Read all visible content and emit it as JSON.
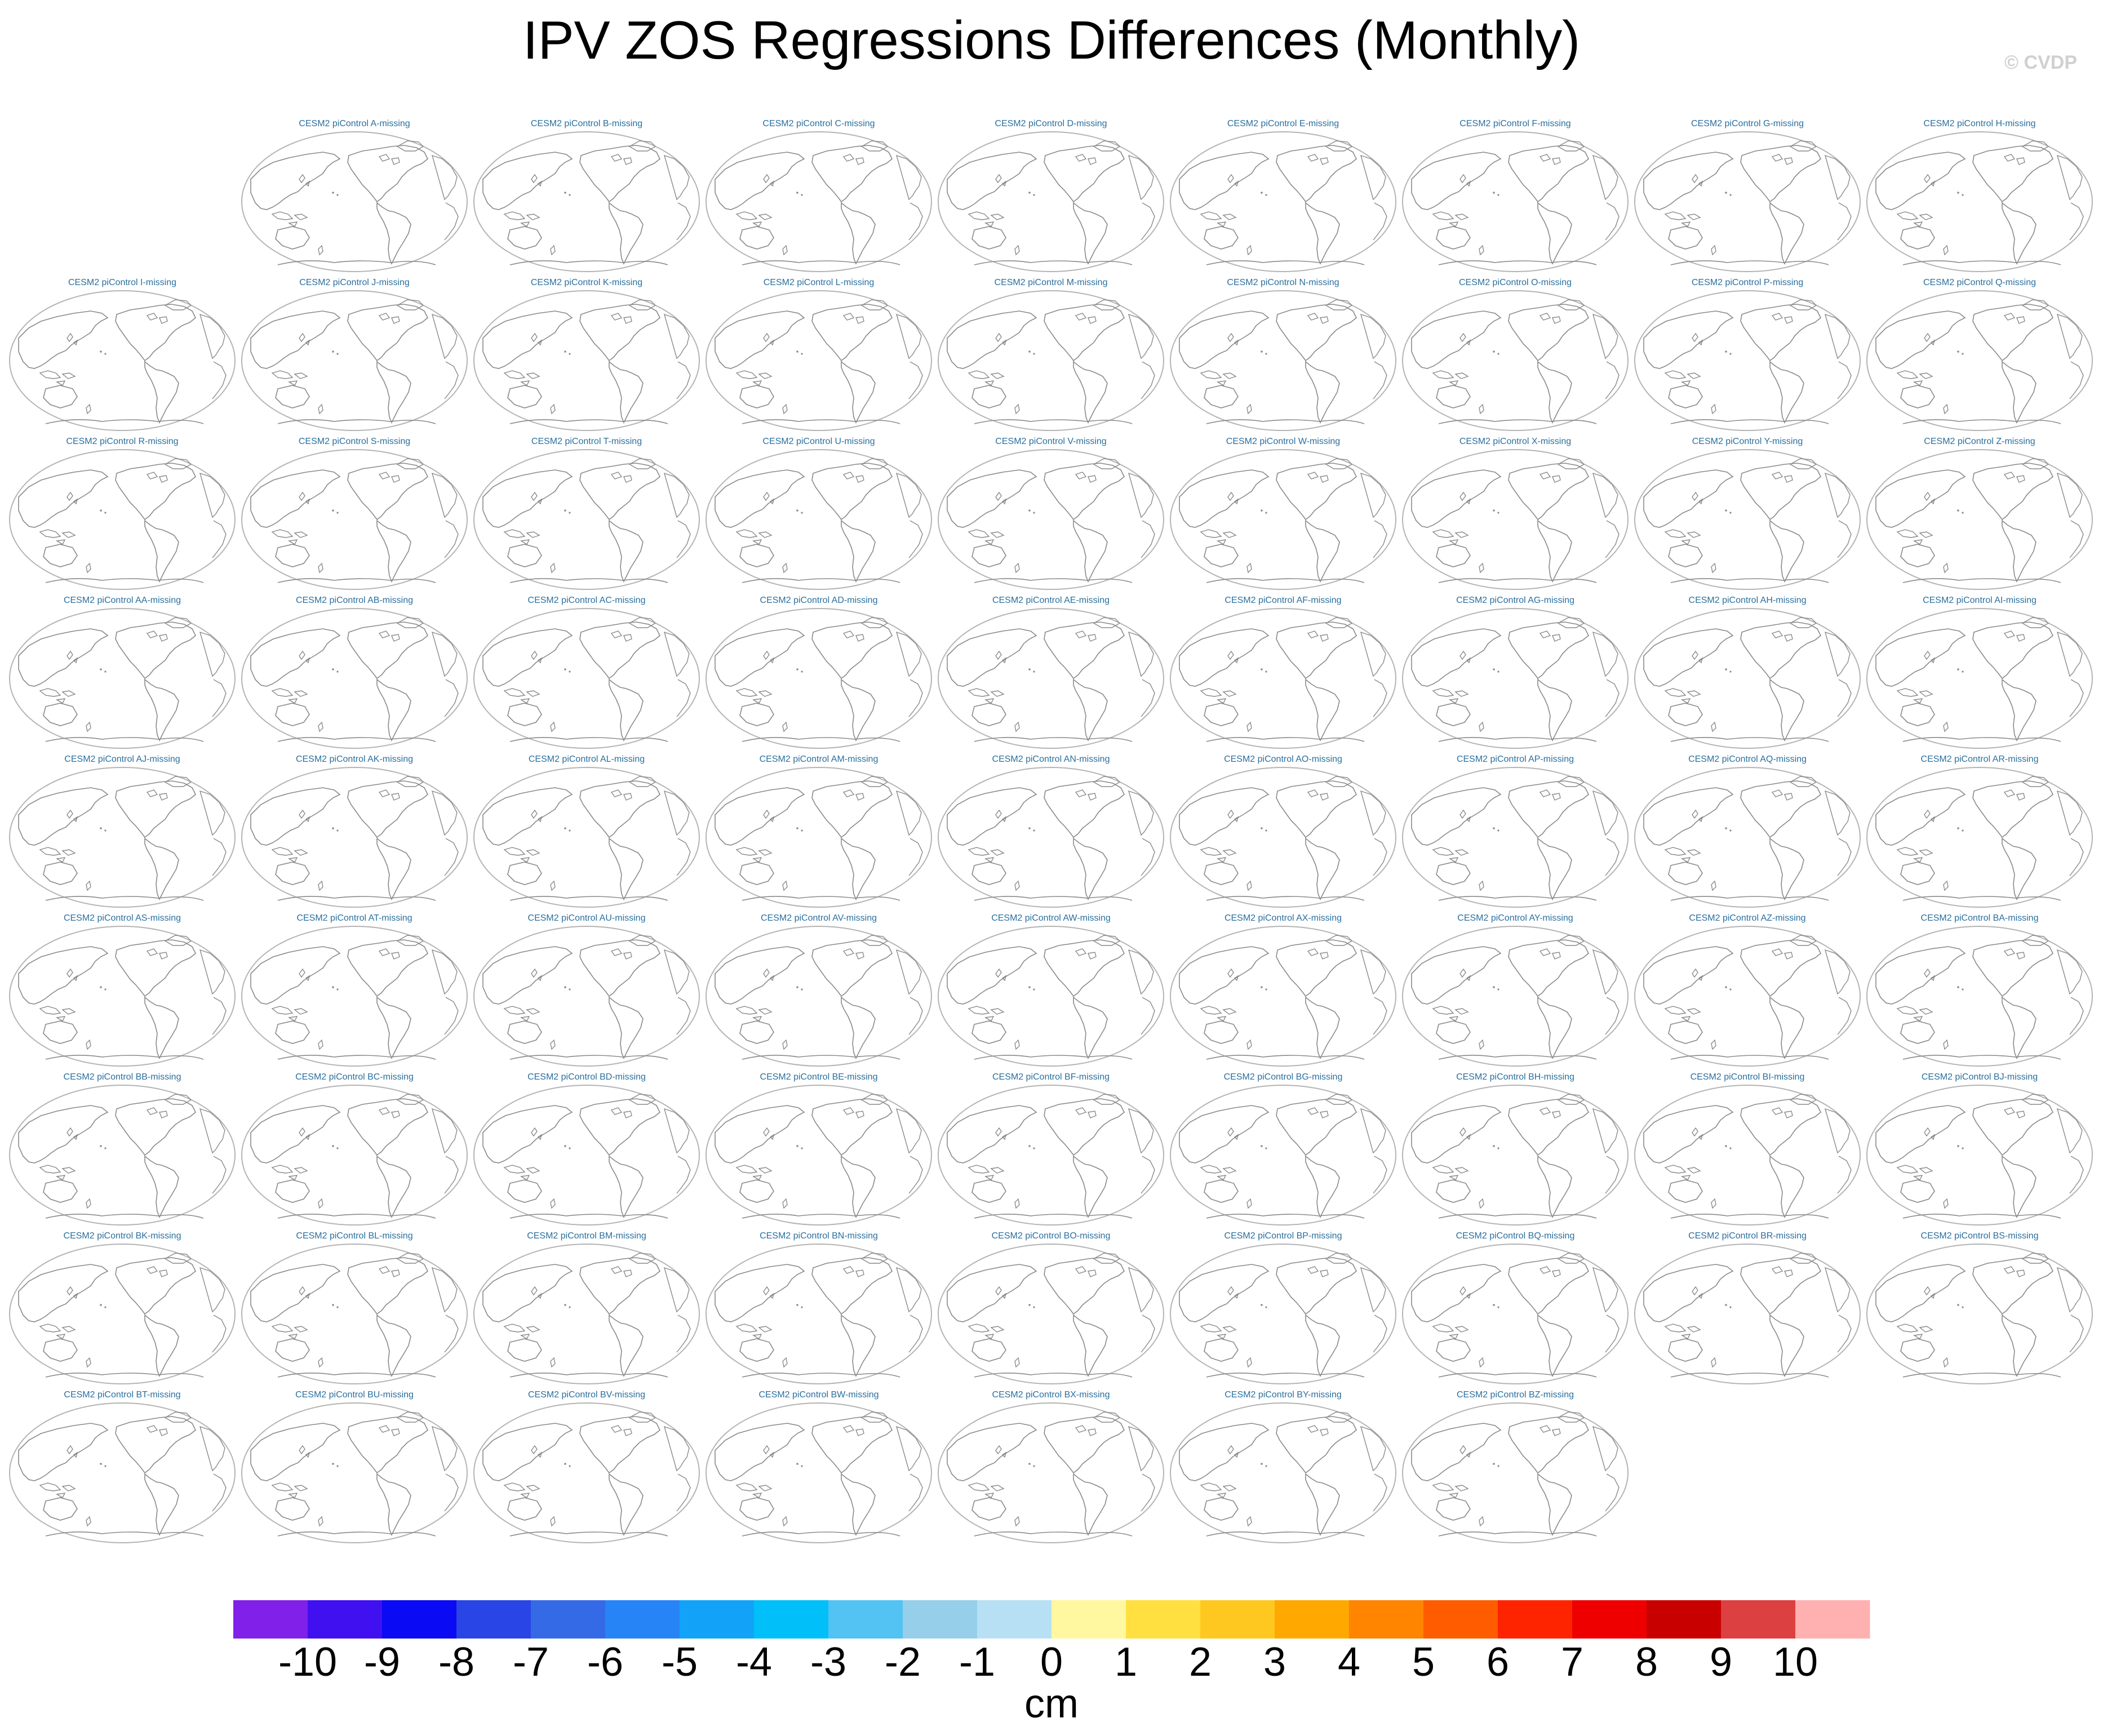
{
  "title": "IPV ZOS Regressions Differences (Monthly)",
  "watermark": "© CVDP",
  "panel_title_prefix": "CESM2 piControl ",
  "panel_title_suffix": "-missing",
  "panels": [
    {
      "id": "A",
      "row": 0,
      "col": 1
    },
    {
      "id": "B",
      "row": 0,
      "col": 2
    },
    {
      "id": "C",
      "row": 0,
      "col": 3
    },
    {
      "id": "D",
      "row": 0,
      "col": 4
    },
    {
      "id": "E",
      "row": 0,
      "col": 5
    },
    {
      "id": "F",
      "row": 0,
      "col": 6
    },
    {
      "id": "G",
      "row": 0,
      "col": 7
    },
    {
      "id": "H",
      "row": 0,
      "col": 8
    },
    {
      "id": "I",
      "row": 1,
      "col": 0
    },
    {
      "id": "J",
      "row": 1,
      "col": 1
    },
    {
      "id": "K",
      "row": 1,
      "col": 2
    },
    {
      "id": "L",
      "row": 1,
      "col": 3
    },
    {
      "id": "M",
      "row": 1,
      "col": 4
    },
    {
      "id": "N",
      "row": 1,
      "col": 5
    },
    {
      "id": "O",
      "row": 1,
      "col": 6
    },
    {
      "id": "P",
      "row": 1,
      "col": 7
    },
    {
      "id": "Q",
      "row": 1,
      "col": 8
    },
    {
      "id": "R",
      "row": 2,
      "col": 0
    },
    {
      "id": "S",
      "row": 2,
      "col": 1
    },
    {
      "id": "T",
      "row": 2,
      "col": 2
    },
    {
      "id": "U",
      "row": 2,
      "col": 3
    },
    {
      "id": "V",
      "row": 2,
      "col": 4
    },
    {
      "id": "W",
      "row": 2,
      "col": 5
    },
    {
      "id": "X",
      "row": 2,
      "col": 6
    },
    {
      "id": "Y",
      "row": 2,
      "col": 7
    },
    {
      "id": "Z",
      "row": 2,
      "col": 8
    },
    {
      "id": "AA",
      "row": 3,
      "col": 0
    },
    {
      "id": "AB",
      "row": 3,
      "col": 1
    },
    {
      "id": "AC",
      "row": 3,
      "col": 2
    },
    {
      "id": "AD",
      "row": 3,
      "col": 3
    },
    {
      "id": "AE",
      "row": 3,
      "col": 4
    },
    {
      "id": "AF",
      "row": 3,
      "col": 5
    },
    {
      "id": "AG",
      "row": 3,
      "col": 6
    },
    {
      "id": "AH",
      "row": 3,
      "col": 7
    },
    {
      "id": "AI",
      "row": 3,
      "col": 8
    },
    {
      "id": "AJ",
      "row": 4,
      "col": 0
    },
    {
      "id": "AK",
      "row": 4,
      "col": 1
    },
    {
      "id": "AL",
      "row": 4,
      "col": 2
    },
    {
      "id": "AM",
      "row": 4,
      "col": 3
    },
    {
      "id": "AN",
      "row": 4,
      "col": 4
    },
    {
      "id": "AO",
      "row": 4,
      "col": 5
    },
    {
      "id": "AP",
      "row": 4,
      "col": 6
    },
    {
      "id": "AQ",
      "row": 4,
      "col": 7
    },
    {
      "id": "AR",
      "row": 4,
      "col": 8
    },
    {
      "id": "AS",
      "row": 5,
      "col": 0
    },
    {
      "id": "AT",
      "row": 5,
      "col": 1
    },
    {
      "id": "AU",
      "row": 5,
      "col": 2
    },
    {
      "id": "AV",
      "row": 5,
      "col": 3
    },
    {
      "id": "AW",
      "row": 5,
      "col": 4
    },
    {
      "id": "AX",
      "row": 5,
      "col": 5
    },
    {
      "id": "AY",
      "row": 5,
      "col": 6
    },
    {
      "id": "AZ",
      "row": 5,
      "col": 7
    },
    {
      "id": "BA",
      "row": 5,
      "col": 8
    },
    {
      "id": "BB",
      "row": 6,
      "col": 0
    },
    {
      "id": "BC",
      "row": 6,
      "col": 1
    },
    {
      "id": "BD",
      "row": 6,
      "col": 2
    },
    {
      "id": "BE",
      "row": 6,
      "col": 3
    },
    {
      "id": "BF",
      "row": 6,
      "col": 4
    },
    {
      "id": "BG",
      "row": 6,
      "col": 5
    },
    {
      "id": "BH",
      "row": 6,
      "col": 6
    },
    {
      "id": "BI",
      "row": 6,
      "col": 7
    },
    {
      "id": "BJ",
      "row": 6,
      "col": 8
    },
    {
      "id": "BK",
      "row": 7,
      "col": 0
    },
    {
      "id": "BL",
      "row": 7,
      "col": 1
    },
    {
      "id": "BM",
      "row": 7,
      "col": 2
    },
    {
      "id": "BN",
      "row": 7,
      "col": 3
    },
    {
      "id": "BO",
      "row": 7,
      "col": 4
    },
    {
      "id": "BP",
      "row": 7,
      "col": 5
    },
    {
      "id": "BQ",
      "row": 7,
      "col": 6
    },
    {
      "id": "BR",
      "row": 7,
      "col": 7
    },
    {
      "id": "BS",
      "row": 7,
      "col": 8
    },
    {
      "id": "BT",
      "row": 8,
      "col": 0
    },
    {
      "id": "BU",
      "row": 8,
      "col": 1
    },
    {
      "id": "BV",
      "row": 8,
      "col": 2
    },
    {
      "id": "BW",
      "row": 8,
      "col": 3
    },
    {
      "id": "BX",
      "row": 8,
      "col": 4
    },
    {
      "id": "BY",
      "row": 8,
      "col": 5
    },
    {
      "id": "BZ",
      "row": 8,
      "col": 6
    }
  ],
  "colorbar": {
    "unit": "cm",
    "labels": [
      "-10",
      "-9",
      "-8",
      "-7",
      "-6",
      "-5",
      "-4",
      "-3",
      "-2",
      "-1",
      "0",
      "1",
      "2",
      "3",
      "4",
      "5",
      "6",
      "7",
      "8",
      "9",
      "10"
    ],
    "colors": [
      "#8020e8",
      "#4010f0",
      "#0a0af5",
      "#2a45e6",
      "#346ae6",
      "#2784f7",
      "#12a3f8",
      "#00bff9",
      "#52c3f2",
      "#96cfea",
      "#b8e0f4",
      "#fff8a0",
      "#ffe040",
      "#ffc820",
      "#ffa800",
      "#ff8400",
      "#ff5c00",
      "#ff2400",
      "#ee0000",
      "#c80000",
      "#dd4040",
      "#ffb0b0"
    ]
  },
  "map_style": {
    "outline": "#b4b4b4",
    "coast": "#8a8a8a"
  }
}
